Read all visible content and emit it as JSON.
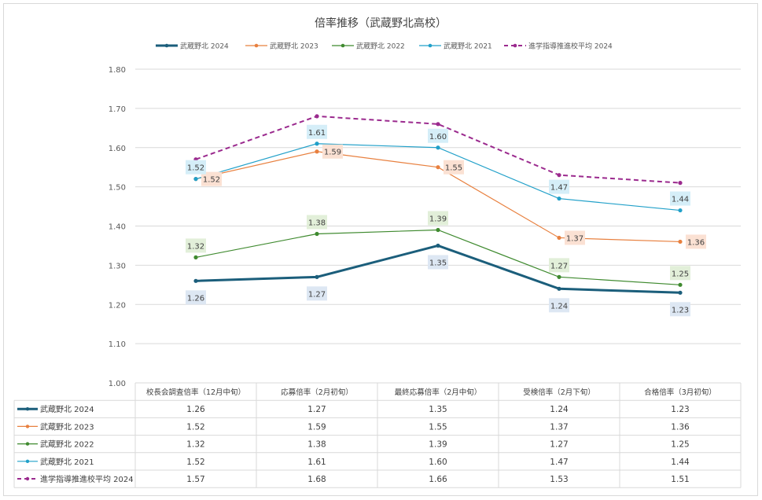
{
  "chart_data": {
    "type": "line",
    "title": "倍率推移（武蔵野北高校）",
    "xlabel": "",
    "ylabel": "",
    "ylim": [
      1.0,
      1.8
    ],
    "yticks": [
      "1.00",
      "1.10",
      "1.20",
      "1.30",
      "1.40",
      "1.50",
      "1.60",
      "1.70",
      "1.80"
    ],
    "grid": true,
    "legend_position": "top",
    "categories": [
      "校長会調査倍率（12月中旬）",
      "応募倍率（2月初旬）",
      "最終応募倍率（2月中旬）",
      "受検倍率（2月下旬）",
      "合格倍率（3月初旬）"
    ],
    "series": [
      {
        "name": "武蔵野北 2024",
        "values": [
          1.26,
          1.27,
          1.35,
          1.24,
          1.23
        ],
        "color": "#1b5e7b",
        "label_pos": "below",
        "label_bg": "#dde7f3",
        "dashed": false,
        "width": 3,
        "labels": true
      },
      {
        "name": "武蔵野北 2023",
        "values": [
          1.52,
          1.59,
          1.55,
          1.37,
          1.36
        ],
        "color": "#e8803f",
        "label_pos": "right",
        "label_bg": "#fbe1d3",
        "dashed": false,
        "width": 1.2,
        "labels": true
      },
      {
        "name": "武蔵野北 2022",
        "values": [
          1.32,
          1.38,
          1.39,
          1.27,
          1.25
        ],
        "color": "#3f8a2f",
        "label_pos": "above",
        "label_bg": "#e2efd9",
        "dashed": false,
        "width": 1.2,
        "labels": true
      },
      {
        "name": "武蔵野北 2021",
        "values": [
          1.52,
          1.61,
          1.6,
          1.47,
          1.44
        ],
        "color": "#21a0c9",
        "label_pos": "above",
        "label_bg": "#d5eef8",
        "dashed": false,
        "width": 1.2,
        "labels": true
      },
      {
        "name": "進学指導推進校平均 2024",
        "values": [
          1.57,
          1.68,
          1.66,
          1.53,
          1.51
        ],
        "color": "#9b2a8e",
        "label_pos": "none",
        "label_bg": "",
        "dashed": true,
        "width": 2,
        "labels": false
      }
    ]
  }
}
